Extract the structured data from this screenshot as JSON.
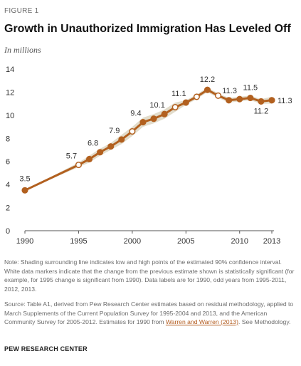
{
  "figure_label": "FIGURE 1",
  "title": "Growth in Unauthorized Immigration Has Leveled Off",
  "subtitle": "In millions",
  "note": "Note: Shading surrounding line indicates low and high points of the estimated 90% confidence interval. White data markers indicate that the change from the previous estimate shown is statistically significant (for example, for 1995 change is significant from 1990). Data labels are for 1990, odd years from 1995-2011, 2012, 2013.",
  "source_prefix": "Source: Table A1, derived from Pew Research Center estimates based on residual methodology, applied to March Supplements of the Current Population Survey for 1995-2004 and 2013, and the American Community Survey for 2005-2012. Estimates for 1990 from ",
  "source_link": "Warren and Warren (2013)",
  "source_suffix": ". See Methodology.",
  "organization": "PEW RESEARCH CENTER",
  "colors": {
    "line": "#b2601f",
    "band": "#e2dccb",
    "axis": "#555555",
    "marker_fill_significant": "#ffffff"
  },
  "chart_data": {
    "type": "line",
    "x": [
      1990,
      1995,
      1996,
      1997,
      1998,
      1999,
      2000,
      2001,
      2002,
      2003,
      2004,
      2005,
      2006,
      2007,
      2008,
      2009,
      2010,
      2011,
      2012,
      2013
    ],
    "series": [
      {
        "values": [
          3.5,
          5.7,
          6.2,
          6.8,
          7.3,
          7.9,
          8.6,
          9.4,
          9.7,
          10.1,
          10.7,
          11.1,
          11.6,
          12.2,
          11.7,
          11.3,
          11.4,
          11.5,
          11.2,
          11.3
        ],
        "low": [
          3.5,
          5.5,
          5.9,
          6.5,
          7.0,
          7.5,
          8.2,
          9.0,
          9.3,
          9.7,
          10.3,
          10.9,
          11.4,
          12.0,
          11.5,
          11.1,
          11.2,
          11.3,
          11.0,
          11.0
        ],
        "high": [
          3.5,
          5.9,
          6.5,
          7.1,
          7.6,
          8.3,
          9.0,
          9.8,
          10.1,
          10.5,
          11.1,
          11.3,
          11.8,
          12.4,
          11.9,
          11.5,
          11.6,
          11.7,
          11.4,
          11.6
        ],
        "significant_change": [
          false,
          true,
          false,
          false,
          false,
          false,
          true,
          false,
          false,
          false,
          true,
          false,
          true,
          false,
          true,
          false,
          false,
          false,
          false,
          false
        ]
      }
    ],
    "data_labels": [
      {
        "x": 1990,
        "label": "3.5"
      },
      {
        "x": 1995,
        "label": "5.7"
      },
      {
        "x": 1997,
        "label": "6.8"
      },
      {
        "x": 1999,
        "label": "7.9"
      },
      {
        "x": 2001,
        "label": "9.4"
      },
      {
        "x": 2003,
        "label": "10.1"
      },
      {
        "x": 2005,
        "label": "11.1"
      },
      {
        "x": 2007,
        "label": "12.2"
      },
      {
        "x": 2009,
        "label": "11.3"
      },
      {
        "x": 2011,
        "label": "11.5"
      },
      {
        "x": 2012,
        "label": "11.2"
      },
      {
        "x": 2013,
        "label": "11.3"
      }
    ],
    "xticks": [
      "1990",
      "1995",
      "2000",
      "2005",
      "2010",
      "2013"
    ],
    "yticks": [
      "0",
      "2",
      "4",
      "6",
      "8",
      "10",
      "12",
      "14"
    ],
    "xlim": [
      1990,
      2013
    ],
    "ylim": [
      0,
      14
    ],
    "grid": false,
    "xlabel": "",
    "ylabel": ""
  }
}
